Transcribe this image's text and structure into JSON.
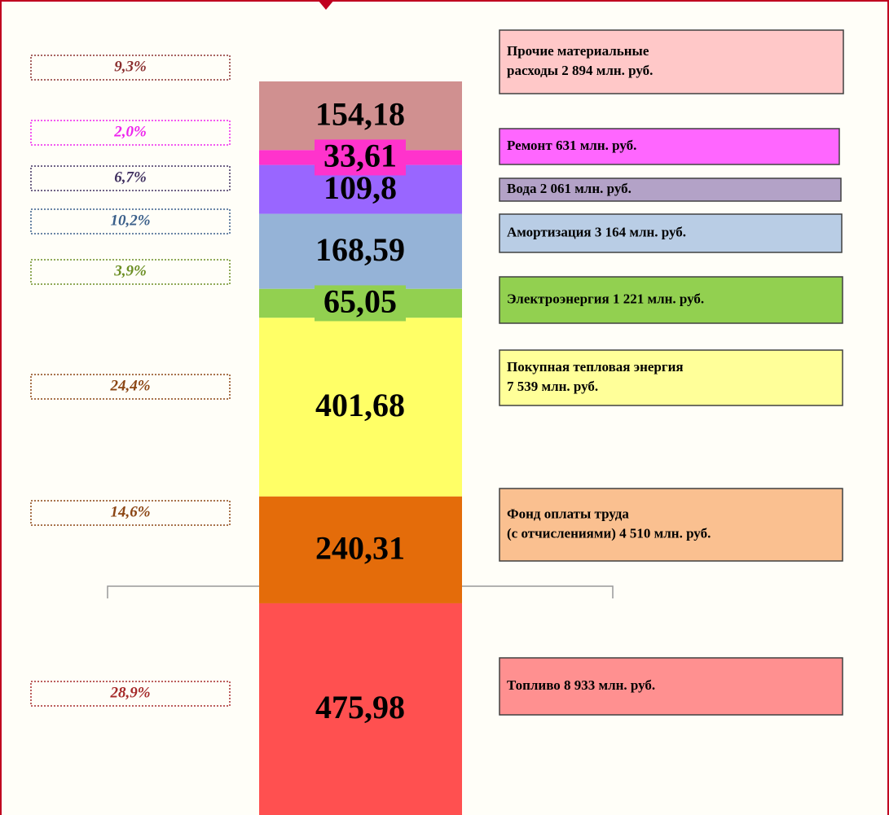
{
  "chart_data": {
    "type": "stacked-bar",
    "series": [
      {
        "name": [
          "Топливо 8 933 млн. руб."
        ],
        "color": "#ff5050",
        "box_color": "#ff9090",
        "values": [
          475.98
        ],
        "value_labels": [
          "475,98"
        ],
        "share": 28.9,
        "share_label": "28,9%",
        "share_color": "#a52a2a"
      },
      {
        "name": [
          "Фонд оплаты труда",
          "(с отчислениями) 4 510 млн. руб."
        ],
        "color": "#e46c0a",
        "box_color": "#fac090",
        "values": [
          240.31
        ],
        "value_labels": [
          "240,31"
        ],
        "share": 14.6,
        "share_label": "14,6%",
        "share_color": "#8b4513"
      },
      {
        "name": [
          "Покупная тепловая энергия",
          "7 539 млн. руб."
        ],
        "color": "#ffff66",
        "box_color": "#ffff99",
        "values": [
          401.68
        ],
        "value_labels": [
          "401,68"
        ],
        "share": 24.4,
        "share_label": "24,4%",
        "share_color": "#8b4513"
      },
      {
        "name": [
          "Электроэнергия  1 221 млн. руб."
        ],
        "color": "#92d050",
        "box_color": "#92d050",
        "values": [
          65.05
        ],
        "value_labels": [
          "65,05"
        ],
        "share": 3.9,
        "share_label": "3,9%",
        "share_color": "#6b8e23"
      },
      {
        "name": [
          "Амортизация 3 164 млн. руб."
        ],
        "color": "#95b3d7",
        "box_color": "#b9cde5",
        "values": [
          168.59
        ],
        "value_labels": [
          "168,59"
        ],
        "share": 10.2,
        "share_label": "10,2%",
        "share_color": "#3a5f8a"
      },
      {
        "name": [
          "Вода 2 061 млн. руб."
        ],
        "color": "#9966ff",
        "box_color": "#b3a2c7",
        "values": [
          109.8
        ],
        "value_labels": [
          "109,8"
        ],
        "share": 6.7,
        "share_label": "6,7%",
        "share_color": "#403060"
      },
      {
        "name": [
          "Ремонт 631 млн. руб."
        ],
        "color": "#ff33cc",
        "box_color": "#ff66ff",
        "values": [
          33.61
        ],
        "value_labels": [
          "33,61"
        ],
        "share": 2.0,
        "share_label": "2,0%",
        "share_color": "#ee22ee"
      },
      {
        "name": [
          "Прочие материальные",
          "расходы  2 894 млн. руб."
        ],
        "color": "#d09090",
        "box_color": "#ffc8c8",
        "values": [
          154.18
        ],
        "value_labels": [
          "154,18"
        ],
        "share": 9.3,
        "share_label": "9,3%",
        "share_color": "#8b3030"
      }
    ]
  }
}
